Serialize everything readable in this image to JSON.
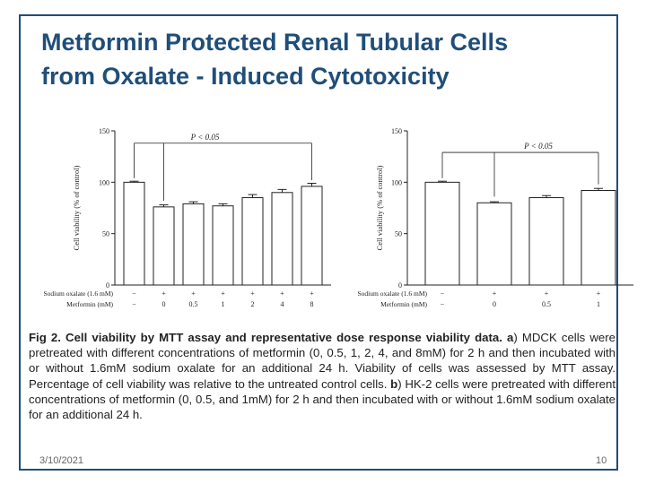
{
  "slide": {
    "title_line1": "Metformin Protected Renal Tubular Cells",
    "title_line2": "from Oxalate - Induced Cytotoxicity",
    "caption": {
      "fig_label": "Fig 2. Cell viability by MTT assay and representative dose response viability data.",
      "a_letter": "a",
      "a_text": ") MDCK cells were pretreated with different concentrations of metformin (0, 0.5, 1, 2, 4, and 8mM) for 2 h and then incubated with or without 1.6mM sodium oxalate for an additional 24 h. Viability of cells was assessed by MTT assay. Percentage of cell viability was relative to the untreated control cells.",
      "b_letter": "b",
      "b_text": ") HK-2 cells were pretreated with different concentrations of metformin (0, 0.5, and 1mM) for 2 h and then incubated with or without 1.6mM sodium oxalate for an additional 24 h."
    },
    "date": "3/10/2021",
    "page": "10",
    "colors": {
      "title": "#1f4e79",
      "frame": "#1f4e79",
      "bar_edge": "#222222"
    }
  },
  "chart_data": [
    {
      "type": "bar",
      "panel": "a",
      "ylabel": "Cell viability (% of control)",
      "ylim": [
        0,
        150
      ],
      "yticks": [
        "0",
        "50",
        "100",
        "150"
      ],
      "values": [
        100,
        76,
        79,
        77,
        85,
        90,
        96
      ],
      "errors": [
        1,
        2,
        2,
        2,
        3,
        3,
        3
      ],
      "significance": "P < 0.05",
      "row_labels": [
        "Sodium oxalate (1.6 mM)",
        "Metformin (mM)"
      ],
      "oxalate": [
        "−",
        "+",
        "+",
        "+",
        "+",
        "+",
        "+"
      ],
      "metformin": [
        "−",
        "0",
        "0.5",
        "1",
        "2",
        "4",
        "8"
      ]
    },
    {
      "type": "bar",
      "panel": "b",
      "ylabel": "Cell viability (% of control)",
      "ylim": [
        0,
        150
      ],
      "yticks": [
        "0",
        "50",
        "100",
        "150"
      ],
      "values": [
        100,
        80,
        85,
        92
      ],
      "errors": [
        1,
        1,
        2,
        2
      ],
      "significance": "P < 0.05",
      "row_labels": [
        "Sodium oxalate (1.6 mM)",
        "Metformin (mM)"
      ],
      "oxalate": [
        "−",
        "+",
        "+",
        "+"
      ],
      "metformin": [
        "−",
        "0",
        "0.5",
        "1"
      ]
    }
  ]
}
